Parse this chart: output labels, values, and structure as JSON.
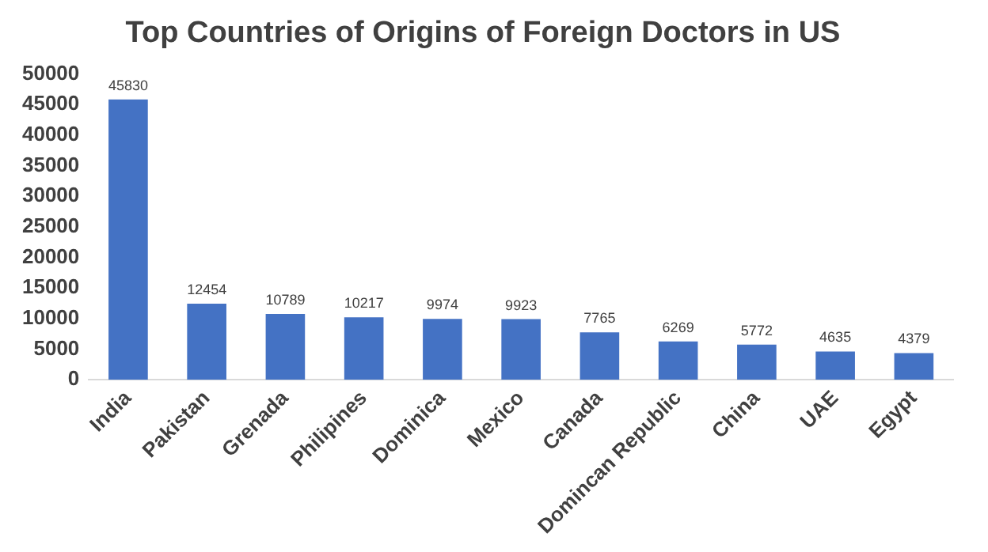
{
  "chart_data": {
    "type": "bar",
    "title": "Top Countries of Origins of Foreign Doctors in US",
    "categories": [
      "India",
      "Pakistan",
      "Grenada",
      "Philipines",
      "Dominica",
      "Mexico",
      "Canada",
      "Domincan Republic",
      "China",
      "UAE",
      "Egypt"
    ],
    "values": [
      45830,
      12454,
      10789,
      10217,
      9974,
      9923,
      7765,
      6269,
      5772,
      4635,
      4379
    ],
    "color": "#4472c4",
    "ylim": [
      0,
      50000
    ],
    "yticks": [
      0,
      5000,
      10000,
      15000,
      20000,
      25000,
      30000,
      35000,
      40000,
      45000,
      50000
    ],
    "grid": false,
    "legend": false,
    "data_labels": true
  }
}
